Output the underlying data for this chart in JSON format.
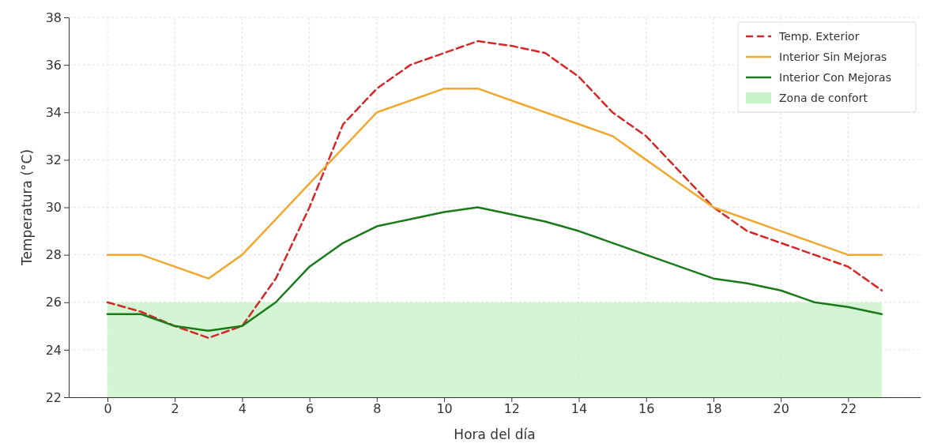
{
  "chart_data": {
    "type": "line",
    "xlabel": "Hora del día",
    "ylabel": "Temperatura (°C)",
    "x": [
      0,
      1,
      2,
      3,
      4,
      5,
      6,
      7,
      8,
      9,
      10,
      11,
      12,
      13,
      14,
      15,
      16,
      17,
      18,
      19,
      20,
      21,
      22,
      23
    ],
    "xlim": [
      -1.15,
      24.15
    ],
    "xticks": [
      0,
      2,
      4,
      6,
      8,
      10,
      12,
      14,
      16,
      18,
      20,
      22
    ],
    "ylim": [
      22,
      38
    ],
    "yticks": [
      22,
      24,
      26,
      28,
      30,
      32,
      34,
      36,
      38
    ],
    "grid": true,
    "legend": "top right",
    "series": [
      {
        "name": "Temp. Exterior",
        "color": "#d62728",
        "line_style": "dashed",
        "values": [
          26,
          25.6,
          25,
          24.5,
          25,
          27,
          30,
          33.5,
          35,
          36,
          36.5,
          37,
          36.8,
          36.5,
          35.5,
          34,
          33,
          31.5,
          30,
          29,
          28.5,
          28,
          27.5,
          26.5
        ]
      },
      {
        "name": "Interior Sin Mejoras",
        "color": "#f0a830",
        "line_style": "solid",
        "values": [
          28,
          28,
          27.5,
          27,
          28,
          29.5,
          31,
          32.5,
          34,
          34.5,
          35,
          35,
          34.5,
          34,
          33.5,
          33,
          32,
          31,
          30,
          29.5,
          29,
          28.5,
          28,
          28
        ]
      },
      {
        "name": "Interior Con Mejoras",
        "color": "#1a7a1a",
        "line_style": "solid",
        "values": [
          25.5,
          25.5,
          25,
          24.8,
          25,
          26,
          27.5,
          28.5,
          29.2,
          29.5,
          29.8,
          30,
          29.7,
          29.4,
          29,
          28.5,
          28,
          27.5,
          27,
          26.8,
          26.5,
          26,
          25.8,
          25.5
        ]
      }
    ],
    "bands": [
      {
        "axis": "y",
        "from": 22,
        "to": 26,
        "label": "Zona de confort",
        "color": "#c8f2c8"
      }
    ]
  }
}
